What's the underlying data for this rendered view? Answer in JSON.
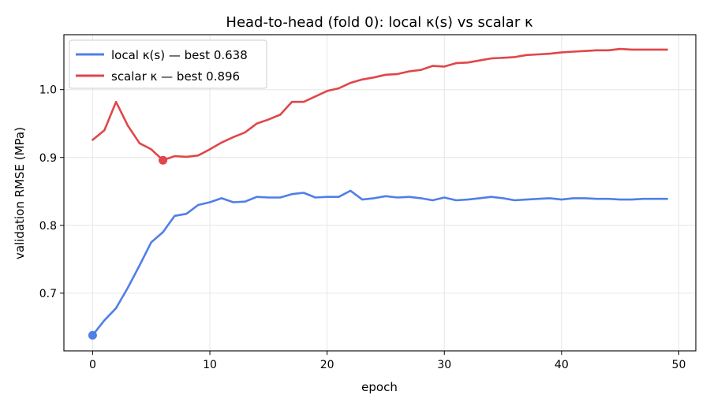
{
  "chart_data": {
    "type": "line",
    "title": "Head-to-head (fold 0): local κ(s) vs scalar κ",
    "xlabel": "epoch",
    "ylabel": "validation RMSE (MPa)",
    "xlim": [
      -2.45,
      51.45
    ],
    "ylim": [
      0.615,
      1.081
    ],
    "x_ticks": [
      0,
      10,
      20,
      30,
      40,
      50
    ],
    "y_ticks": [
      0.7,
      0.8,
      0.9,
      1.0
    ],
    "y_tick_labels": [
      "0.7",
      "0.8",
      "0.9",
      "1.0"
    ],
    "grid": true,
    "legend_position": "top-left",
    "series": [
      {
        "name": "local κ(s) — best 0.638",
        "color": "#4f7fe8",
        "x": [
          0,
          1,
          2,
          3,
          4,
          5,
          6,
          7,
          8,
          9,
          10,
          11,
          12,
          13,
          14,
          15,
          16,
          17,
          18,
          19,
          20,
          21,
          22,
          23,
          24,
          25,
          26,
          27,
          28,
          29,
          30,
          31,
          32,
          33,
          34,
          35,
          36,
          37,
          38,
          39,
          40,
          41,
          42,
          43,
          44,
          45,
          46,
          47,
          48,
          49
        ],
        "values": [
          0.638,
          0.66,
          0.678,
          0.708,
          0.741,
          0.775,
          0.79,
          0.814,
          0.817,
          0.83,
          0.834,
          0.84,
          0.834,
          0.835,
          0.842,
          0.841,
          0.841,
          0.846,
          0.848,
          0.841,
          0.842,
          0.842,
          0.851,
          0.838,
          0.84,
          0.843,
          0.841,
          0.842,
          0.84,
          0.837,
          0.841,
          0.837,
          0.838,
          0.84,
          0.842,
          0.84,
          0.837,
          0.838,
          0.839,
          0.84,
          0.838,
          0.84,
          0.84,
          0.839,
          0.839,
          0.838,
          0.838,
          0.839,
          0.839,
          0.839
        ],
        "best": {
          "x": 0,
          "y": 0.638
        }
      },
      {
        "name": "scalar κ — best 0.896",
        "color": "#e0464a",
        "x": [
          0,
          1,
          2,
          3,
          4,
          5,
          6,
          7,
          8,
          9,
          10,
          11,
          12,
          13,
          14,
          15,
          16,
          17,
          18,
          19,
          20,
          21,
          22,
          23,
          24,
          25,
          26,
          27,
          28,
          29,
          30,
          31,
          32,
          33,
          34,
          35,
          36,
          37,
          38,
          39,
          40,
          41,
          42,
          43,
          44,
          45,
          46,
          47,
          48,
          49
        ],
        "values": [
          0.926,
          0.94,
          0.982,
          0.947,
          0.921,
          0.912,
          0.896,
          0.902,
          0.901,
          0.903,
          0.912,
          0.922,
          0.93,
          0.937,
          0.95,
          0.956,
          0.963,
          0.982,
          0.982,
          0.99,
          0.998,
          1.002,
          1.01,
          1.015,
          1.018,
          1.022,
          1.023,
          1.027,
          1.029,
          1.035,
          1.034,
          1.039,
          1.04,
          1.043,
          1.046,
          1.047,
          1.048,
          1.051,
          1.052,
          1.053,
          1.055,
          1.056,
          1.057,
          1.058,
          1.058,
          1.06,
          1.059,
          1.059,
          1.059,
          1.059
        ],
        "best": {
          "x": 6,
          "y": 0.896
        }
      }
    ]
  }
}
